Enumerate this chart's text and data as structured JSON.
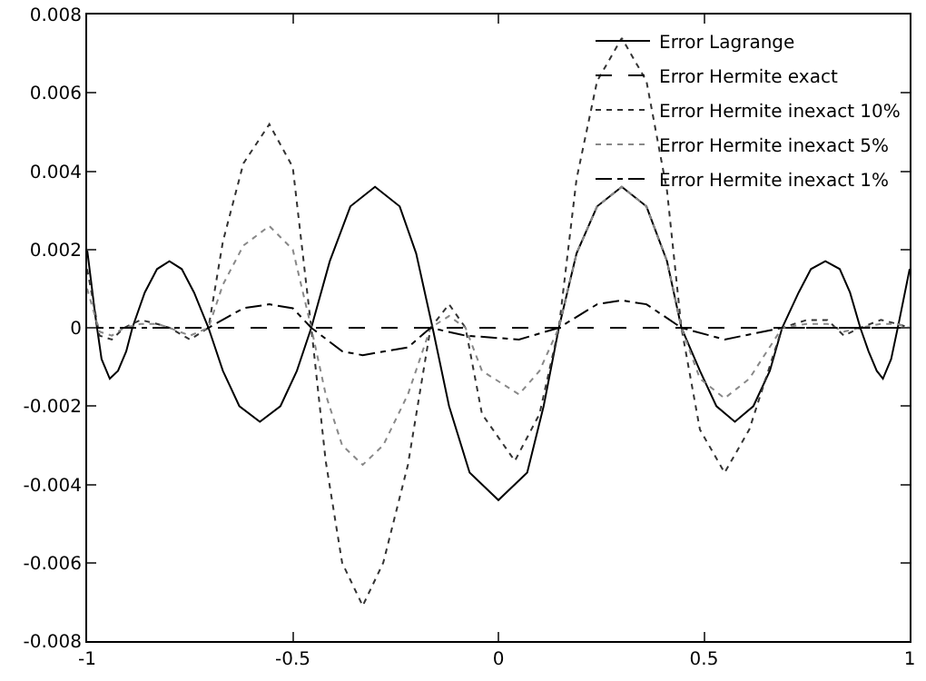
{
  "chart_data": {
    "type": "line",
    "xlim": [
      -1,
      1
    ],
    "ylim": [
      -0.008,
      0.008
    ],
    "xticks": [
      -1,
      -0.5,
      0,
      0.5,
      1
    ],
    "yticks": [
      -0.008,
      -0.006,
      -0.004,
      -0.002,
      0,
      0.002,
      0.004,
      0.006,
      0.008
    ],
    "grid": false,
    "legend": "top right",
    "marker": "none",
    "series": [
      {
        "name": "Error Lagrange",
        "color": "#000000",
        "line_style": "solid",
        "x": [
          -1,
          -0.98,
          -0.965,
          -0.945,
          -0.925,
          -0.905,
          -0.89,
          -0.86,
          -0.83,
          -0.8,
          -0.77,
          -0.74,
          -0.705,
          -0.67,
          -0.63,
          -0.58,
          -0.53,
          -0.49,
          -0.455,
          -0.41,
          -0.36,
          -0.3,
          -0.24,
          -0.2,
          -0.16,
          -0.12,
          -0.07,
          0,
          0.07,
          0.11,
          0.147,
          0.19,
          0.24,
          0.3,
          0.36,
          0.41,
          0.445,
          0.49,
          0.53,
          0.575,
          0.62,
          0.66,
          0.69,
          0.73,
          0.76,
          0.795,
          0.83,
          0.855,
          0.88,
          0.9,
          0.92,
          0.935,
          0.955,
          0.975,
          1
        ],
        "values": [
          0.002,
          0.0003,
          -0.0008,
          -0.0013,
          -0.0011,
          -0.0006,
          0,
          0.0009,
          0.0015,
          0.0017,
          0.0015,
          0.0009,
          0,
          -0.0011,
          -0.002,
          -0.0024,
          -0.002,
          -0.0011,
          0,
          0.0017,
          0.0031,
          0.0036,
          0.0031,
          0.0019,
          0,
          -0.002,
          -0.0037,
          -0.0044,
          -0.0037,
          -0.002,
          0,
          0.0019,
          0.0031,
          0.0036,
          0.0031,
          0.0017,
          0,
          -0.0011,
          -0.002,
          -0.0024,
          -0.002,
          -0.0011,
          0,
          0.0009,
          0.0015,
          0.0017,
          0.0015,
          0.0009,
          0,
          -0.0006,
          -0.0011,
          -0.0013,
          -0.0008,
          0.0002,
          0.0015
        ]
      },
      {
        "name": "Error Hermite exact",
        "color": "#000000",
        "line_style": "dashed",
        "x": [
          -1,
          -0.5,
          0,
          0.5,
          1
        ],
        "values": [
          0,
          0,
          0,
          0,
          0
        ]
      },
      {
        "name": "Error Hermite inexact 10%",
        "color": "#333333",
        "line_style": "dotted",
        "x": [
          -1,
          -0.97,
          -0.94,
          -0.91,
          -0.87,
          -0.83,
          -0.8,
          -0.75,
          -0.705,
          -0.67,
          -0.62,
          -0.557,
          -0.5,
          -0.455,
          -0.42,
          -0.38,
          -0.33,
          -0.28,
          -0.22,
          -0.165,
          -0.12,
          -0.08,
          -0.04,
          0.04,
          0.1,
          0.147,
          0.19,
          0.24,
          0.3,
          0.36,
          0.41,
          0.445,
          0.49,
          0.55,
          0.61,
          0.69,
          0.75,
          0.8,
          0.84,
          0.88,
          0.93,
          0.97,
          1
        ],
        "values": [
          0.0015,
          -0.0002,
          -0.0003,
          0,
          0.0002,
          0.0001,
          0,
          -0.0003,
          0,
          0.0022,
          0.0042,
          0.0052,
          0.0041,
          0,
          -0.0034,
          -0.006,
          -0.0071,
          -0.006,
          -0.0035,
          0,
          0.0006,
          0,
          -0.0022,
          -0.0034,
          -0.0022,
          0,
          0.0038,
          0.0063,
          0.0074,
          0.0063,
          0.0035,
          0,
          -0.0026,
          -0.0037,
          -0.0026,
          0,
          0.0002,
          0.0002,
          -0.0002,
          0,
          0.0002,
          0.0001,
          0
        ]
      },
      {
        "name": "Error Hermite inexact 5%",
        "color": "#888888",
        "line_style": "dotted",
        "x": [
          -1,
          -0.97,
          -0.94,
          -0.91,
          -0.87,
          -0.83,
          -0.8,
          -0.75,
          -0.705,
          -0.67,
          -0.62,
          -0.557,
          -0.5,
          -0.455,
          -0.42,
          -0.38,
          -0.33,
          -0.28,
          -0.22,
          -0.165,
          -0.12,
          -0.08,
          -0.04,
          0.05,
          0.1,
          0.147,
          0.19,
          0.24,
          0.3,
          0.36,
          0.41,
          0.445,
          0.49,
          0.55,
          0.61,
          0.69,
          0.75,
          0.8,
          0.84,
          0.88,
          0.93,
          0.97,
          1
        ],
        "values": [
          0.001,
          -0.0001,
          -0.0002,
          0,
          0.0001,
          0.0001,
          0,
          -0.0002,
          0,
          0.0011,
          0.0021,
          0.0026,
          0.002,
          0,
          -0.0017,
          -0.003,
          -0.0035,
          -0.003,
          -0.0017,
          0,
          0.0003,
          0,
          -0.0011,
          -0.0017,
          -0.0011,
          0,
          0.0019,
          0.0031,
          0.0036,
          0.0031,
          0.0017,
          0,
          -0.0013,
          -0.0018,
          -0.0013,
          0,
          0.0001,
          0.0001,
          -0.0001,
          0,
          0.0001,
          0.0001,
          0
        ]
      },
      {
        "name": "Error Hermite inexact 1%",
        "color": "#000000",
        "line_style": "dashdot",
        "x": [
          -1,
          -0.705,
          -0.62,
          -0.557,
          -0.5,
          -0.455,
          -0.38,
          -0.33,
          -0.22,
          -0.165,
          -0.08,
          0.05,
          0.147,
          0.24,
          0.3,
          0.36,
          0.445,
          0.55,
          0.69,
          1
        ],
        "values": [
          0,
          0,
          0.0005,
          0.0006,
          0.0005,
          0,
          -0.0006,
          -0.0007,
          -0.0005,
          0,
          -0.0002,
          -0.0003,
          0,
          0.0006,
          0.0007,
          0.0006,
          0,
          -0.0003,
          0,
          0
        ]
      }
    ]
  }
}
